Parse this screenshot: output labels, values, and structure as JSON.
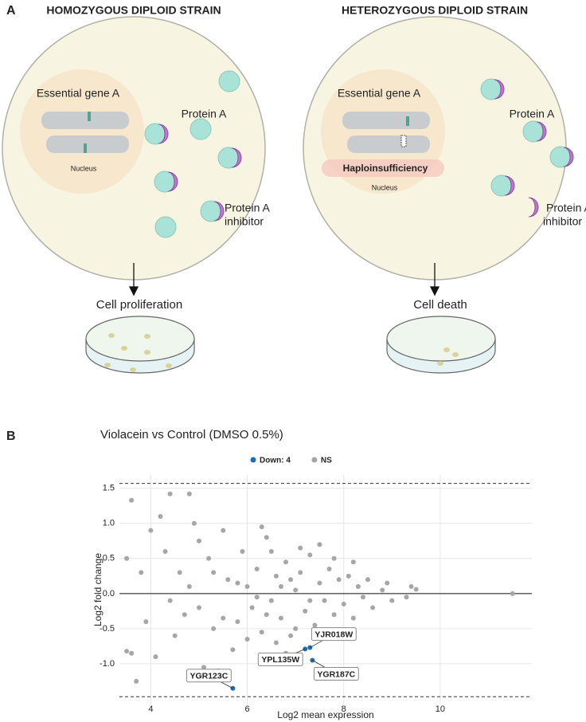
{
  "panel_a": {
    "label": "A",
    "left": {
      "title": "HOMOZYGOUS DIPLOID STRAIN",
      "gene": "Essential gene A",
      "protein": "Protein A",
      "nucleus": "Nucleus",
      "inhibitor": [
        "Protein A",
        "inhibitor"
      ],
      "outcome": "Cell proliferation"
    },
    "right": {
      "title": "HETEROZYGOUS DIPLOID STRAIN",
      "gene": "Essential gene A",
      "protein": "Protein A",
      "nucleus": "Nucleus",
      "haploinsufficiency": "Haploinsufficiency",
      "inhibitor": [
        "Protein A",
        "inhibitor"
      ],
      "outcome": "Cell death"
    }
  },
  "panel_b_label": "B",
  "chart_data": {
    "type": "scatter",
    "title": "Violacein vs Control (DMSO 0.5%)",
    "x_label": "Log2 mean expression",
    "y_label": "Log2 fold change",
    "xlim": [
      3.35,
      11.9
    ],
    "ylim": [
      -1.58,
      1.69
    ],
    "xticks": [
      4,
      6,
      8,
      10
    ],
    "yticks": [
      {
        "value": -1,
        "label": "-1.0"
      },
      -0.5,
      {
        "value": 0,
        "label": "0.0"
      },
      0.5,
      {
        "value": 1,
        "label": "1.0"
      },
      1.5
    ],
    "grid": true,
    "threshold_lines": [
      1.57,
      -1.47
    ],
    "legend_position": "top",
    "series": [
      {
        "name": "Down: 4",
        "color": "#1f6eb5",
        "x": [
          7.3,
          7.2,
          7.35,
          5.7
        ],
        "values": [
          -0.77,
          -0.79,
          -0.95,
          -1.35
        ],
        "point_labels": [
          "YJR018W",
          "YPL135W",
          "YGR187C",
          "YGR123C"
        ]
      },
      {
        "name": "NS",
        "color": "#a6a6a6",
        "x": [
          3.6,
          4.4,
          4.8,
          3.7,
          11.5,
          9.5,
          9.3,
          9.4,
          3.5,
          3.6,
          4.1,
          4.0,
          4.3,
          3.8,
          3.5,
          4.5,
          4.9,
          4.2,
          5.0,
          4.6,
          4.7,
          5.2,
          5.3,
          5.1,
          5.4,
          5.5,
          5.6,
          5.8,
          5.9,
          6.0,
          6.1,
          6.2,
          6.3,
          6.4,
          6.5,
          6.6,
          6.7,
          6.8,
          6.9,
          7.0,
          7.1,
          7.2,
          7.3,
          7.4,
          7.5,
          7.6,
          7.7,
          7.8,
          7.9,
          8.0,
          8.1,
          8.2,
          8.3,
          8.4,
          8.5,
          8.6,
          8.8,
          9.0,
          8.9,
          5.7,
          6.3,
          6.8,
          7.5,
          5.0,
          4.8,
          6.0,
          6.5,
          7.0,
          6.2,
          6.7,
          5.8,
          7.3,
          6.9,
          6.4,
          7.8,
          5.5,
          4.4,
          3.9,
          5.3,
          6.6,
          7.1,
          8.2,
          7.9
        ],
        "values": [
          1.33,
          1.42,
          1.42,
          -1.25,
          0.0,
          0.06,
          -0.05,
          0.1,
          -0.82,
          -0.85,
          -0.9,
          0.9,
          0.6,
          0.3,
          0.5,
          -0.6,
          1.0,
          1.1,
          0.75,
          0.3,
          -0.3,
          0.5,
          -0.5,
          -1.05,
          -1.1,
          0.9,
          0.2,
          -0.4,
          0.6,
          0.1,
          -0.2,
          0.35,
          -0.55,
          0.8,
          -0.1,
          0.25,
          -0.35,
          0.45,
          -0.6,
          0.05,
          0.3,
          -0.25,
          0.55,
          -0.45,
          0.15,
          -0.1,
          0.35,
          -0.3,
          0.2,
          -0.15,
          0.25,
          -0.35,
          0.1,
          -0.05,
          0.2,
          -0.2,
          0.05,
          -0.1,
          0.15,
          -0.8,
          0.95,
          -0.85,
          0.7,
          -0.2,
          0.1,
          -0.65,
          0.6,
          -0.5,
          -0.05,
          0.1,
          0.15,
          -0.1,
          0.2,
          -0.3,
          0.5,
          -0.35,
          -0.1,
          -0.4,
          0.3,
          -0.7,
          0.65,
          0.45,
          -0.6
        ]
      }
    ]
  }
}
